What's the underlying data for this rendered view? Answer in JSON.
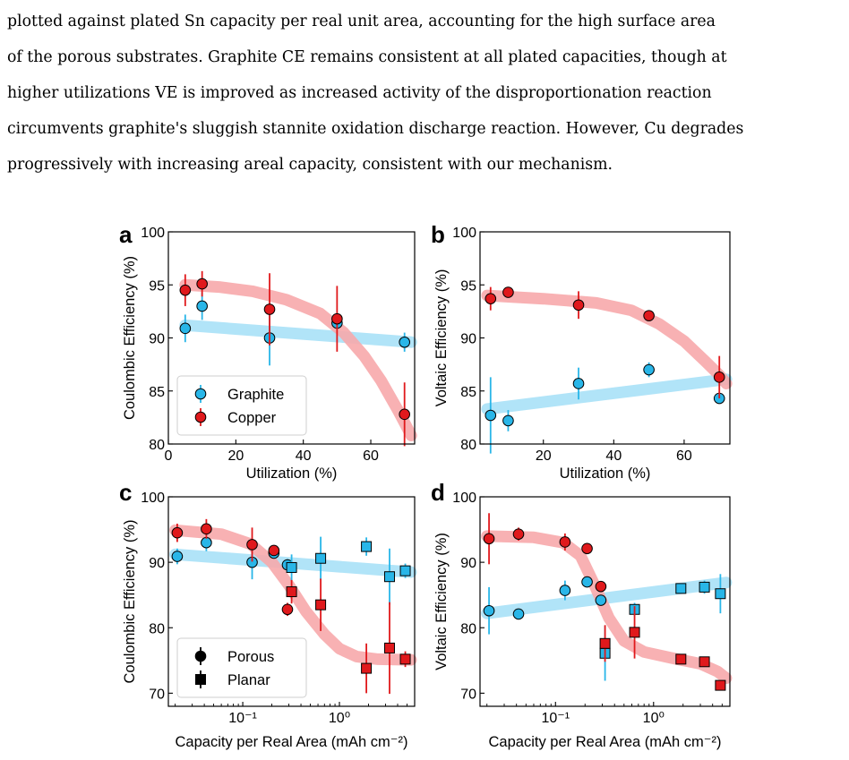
{
  "paragraph": {
    "lines": [
      "plotted against plated Sn capacity per real unit area, accounting for the high surface area",
      "of the porous substrates. Graphite CE remains consistent at all plated capacities, though at",
      "higher utilizations VE is improved as increased activity of the disproportionation reaction",
      "circumvents graphite's sluggish stannite oxidation discharge reaction. However, Cu degrades",
      "progressively with increasing areal capacity, consistent with our mechanism."
    ]
  },
  "colors": {
    "graphite_marker": "#29b6e8",
    "copper_marker": "#e0191c",
    "graphite_trend": "#a8e1f7",
    "copper_trend": "#f7a9ab"
  },
  "chart_data": [
    {
      "panel": "a",
      "type": "scatter",
      "xlabel": "Utilization (%)",
      "ylabel": "Coulombic Efficiency (%)",
      "xlim": [
        0,
        73
      ],
      "ylim": [
        80,
        100
      ],
      "xticks": [
        "0",
        "20",
        "40",
        "60"
      ],
      "yticks": [
        "80",
        "85",
        "90",
        "95",
        "100"
      ],
      "legend": {
        "position": "lower-left",
        "entries": [
          "Graphite",
          "Copper"
        ]
      },
      "series": [
        {
          "name": "Graphite",
          "marker": "circle",
          "color": "#29b6e8",
          "points": [
            {
              "x": 5,
              "y": 90.9,
              "err": 1.3
            },
            {
              "x": 10,
              "y": 93.0,
              "err": 1.3
            },
            {
              "x": 30,
              "y": 90.0,
              "err": 2.6
            },
            {
              "x": 50,
              "y": 91.4,
              "err": 0.6
            },
            {
              "x": 70,
              "y": 89.6,
              "err": 0.9
            }
          ]
        },
        {
          "name": "Copper",
          "marker": "circle",
          "color": "#e0191c",
          "points": [
            {
              "x": 5,
              "y": 94.5,
              "err": 1.5
            },
            {
              "x": 10,
              "y": 95.1,
              "err": 1.2
            },
            {
              "x": 30,
              "y": 92.7,
              "err": 3.4
            },
            {
              "x": 50,
              "y": 91.8,
              "err": 3.1
            },
            {
              "x": 70,
              "y": 82.8,
              "err": 3.0
            }
          ]
        }
      ],
      "trends": {
        "Graphite": [
          [
            5,
            91.2
          ],
          [
            72,
            89.6
          ]
        ],
        "Copper": [
          [
            5,
            95.0
          ],
          [
            15,
            94.8
          ],
          [
            25,
            94.4
          ],
          [
            35,
            93.6
          ],
          [
            45,
            92.3
          ],
          [
            52,
            90.5
          ],
          [
            58,
            88.3
          ],
          [
            63,
            86.0
          ],
          [
            68,
            83.2
          ],
          [
            72,
            80.8
          ]
        ]
      }
    },
    {
      "panel": "b",
      "type": "scatter",
      "xlabel": "Utilization (%)",
      "ylabel": "Voltaic Efficiency (%)",
      "xlim": [
        2,
        73
      ],
      "ylim": [
        80,
        100
      ],
      "xticks": [
        "20",
        "40",
        "60"
      ],
      "yticks": [
        "80",
        "85",
        "90",
        "95",
        "100"
      ],
      "series": [
        {
          "name": "Graphite",
          "marker": "circle",
          "color": "#29b6e8",
          "points": [
            {
              "x": 5,
              "y": 82.7,
              "err": 3.6
            },
            {
              "x": 10,
              "y": 82.2,
              "err": 1.0
            },
            {
              "x": 30,
              "y": 85.7,
              "err": 1.5
            },
            {
              "x": 50,
              "y": 87.0,
              "err": 0.7
            },
            {
              "x": 70,
              "y": 84.3,
              "err": 0.0
            }
          ]
        },
        {
          "name": "Copper",
          "marker": "circle",
          "color": "#e0191c",
          "points": [
            {
              "x": 5,
              "y": 93.7,
              "err": 1.1
            },
            {
              "x": 10,
              "y": 94.3,
              "err": 0.3
            },
            {
              "x": 30,
              "y": 93.1,
              "err": 1.3
            },
            {
              "x": 50,
              "y": 92.1,
              "err": 0.5
            },
            {
              "x": 70,
              "y": 86.3,
              "err": 2.0
            }
          ]
        }
      ],
      "trends": {
        "Graphite": [
          [
            4,
            83.3
          ],
          [
            72,
            86.1
          ]
        ],
        "Copper": [
          [
            4,
            94.0
          ],
          [
            20,
            93.7
          ],
          [
            35,
            93.3
          ],
          [
            45,
            92.6
          ],
          [
            53,
            91.3
          ],
          [
            60,
            89.7
          ],
          [
            66,
            87.8
          ],
          [
            70,
            86.5
          ],
          [
            72,
            85.7
          ]
        ]
      }
    },
    {
      "panel": "c",
      "type": "scatter",
      "xscale": "log",
      "xlabel": "Capacity per Real Area (mAh cm⁻²)",
      "ylabel": "Coulombic Efficiency (%)",
      "xlim": [
        0.017,
        6.0
      ],
      "ylim": [
        68,
        100
      ],
      "xticks": [
        "10⁻¹",
        "10⁰"
      ],
      "yticks": [
        "70",
        "80",
        "90",
        "100"
      ],
      "legend": {
        "position": "lower-left",
        "entries": [
          "Porous",
          "Planar"
        ]
      },
      "series": [
        {
          "name": "Graphite Porous",
          "marker": "circle",
          "color": "#29b6e8",
          "points": [
            {
              "x": 0.021,
              "y": 90.9,
              "err": 1.2
            },
            {
              "x": 0.042,
              "y": 93.0,
              "err": 1.3
            },
            {
              "x": 0.125,
              "y": 90.0,
              "err": 2.6
            },
            {
              "x": 0.21,
              "y": 91.4,
              "err": 0.6
            },
            {
              "x": 0.29,
              "y": 89.6,
              "err": 0.9
            }
          ]
        },
        {
          "name": "Copper Porous",
          "marker": "circle",
          "color": "#e0191c",
          "points": [
            {
              "x": 0.021,
              "y": 94.5,
              "err": 1.4
            },
            {
              "x": 0.042,
              "y": 95.1,
              "err": 1.5
            },
            {
              "x": 0.125,
              "y": 92.7,
              "err": 2.6
            },
            {
              "x": 0.21,
              "y": 91.8,
              "err": 0.6
            },
            {
              "x": 0.29,
              "y": 82.8,
              "err": 1.0
            }
          ]
        },
        {
          "name": "Graphite Planar",
          "marker": "square",
          "color": "#29b6e8",
          "points": [
            {
              "x": 0.32,
              "y": 89.2,
              "err": 2.0
            },
            {
              "x": 0.64,
              "y": 90.6,
              "err": 3.3
            },
            {
              "x": 1.9,
              "y": 92.4,
              "err": 1.4
            },
            {
              "x": 3.3,
              "y": 87.8,
              "err": 4.3
            },
            {
              "x": 4.8,
              "y": 88.7,
              "err": 1.1
            }
          ]
        },
        {
          "name": "Copper Planar",
          "marker": "square",
          "color": "#e0191c",
          "points": [
            {
              "x": 0.32,
              "y": 85.5,
              "err": 1.8
            },
            {
              "x": 0.64,
              "y": 83.5,
              "err": 4.0
            },
            {
              "x": 1.9,
              "y": 73.8,
              "err": 3.8
            },
            {
              "x": 3.3,
              "y": 76.9,
              "err": 7.0
            },
            {
              "x": 4.8,
              "y": 75.2,
              "err": 1.2
            }
          ]
        }
      ],
      "trends": {
        "Graphite": [
          [
            0.02,
            91.2
          ],
          [
            5.5,
            88.5
          ]
        ],
        "Copper": [
          [
            0.02,
            94.9
          ],
          [
            0.06,
            94.3
          ],
          [
            0.12,
            92.8
          ],
          [
            0.2,
            90.0
          ],
          [
            0.3,
            86.5
          ],
          [
            0.45,
            82.5
          ],
          [
            0.7,
            79.0
          ],
          [
            1.0,
            76.8
          ],
          [
            1.5,
            75.6
          ],
          [
            2.5,
            75.2
          ],
          [
            5.5,
            75.1
          ]
        ]
      }
    },
    {
      "panel": "d",
      "type": "scatter",
      "xscale": "log",
      "xlabel": "Capacity per Real Area (mAh cm⁻²)",
      "ylabel": "Voltaic Efficiency (%)",
      "xlim": [
        0.017,
        6.0
      ],
      "ylim": [
        68,
        100
      ],
      "xticks": [
        "10⁻¹",
        "10⁰"
      ],
      "yticks": [
        "70",
        "80",
        "90",
        "100"
      ],
      "series": [
        {
          "name": "Graphite Porous",
          "marker": "circle",
          "color": "#29b6e8",
          "points": [
            {
              "x": 0.021,
              "y": 82.6,
              "err": 3.6
            },
            {
              "x": 0.042,
              "y": 82.1,
              "err": 0.7
            },
            {
              "x": 0.125,
              "y": 85.7,
              "err": 1.5
            },
            {
              "x": 0.21,
              "y": 87.0,
              "err": 0.5
            },
            {
              "x": 0.29,
              "y": 84.2,
              "err": 0.5
            }
          ]
        },
        {
          "name": "Copper Porous",
          "marker": "circle",
          "color": "#e0191c",
          "points": [
            {
              "x": 0.021,
              "y": 93.6,
              "err": 3.9
            },
            {
              "x": 0.042,
              "y": 94.3,
              "err": 1.0
            },
            {
              "x": 0.125,
              "y": 93.1,
              "err": 1.3
            },
            {
              "x": 0.21,
              "y": 92.1,
              "err": 0.5
            },
            {
              "x": 0.29,
              "y": 86.3,
              "err": 0.5
            }
          ]
        },
        {
          "name": "Graphite Planar",
          "marker": "square",
          "color": "#29b6e8",
          "points": [
            {
              "x": 0.32,
              "y": 76.1,
              "err": 4.2
            },
            {
              "x": 0.64,
              "y": 82.8,
              "err": 1.0
            },
            {
              "x": 1.9,
              "y": 86.0,
              "err": 0.5
            },
            {
              "x": 3.3,
              "y": 86.2,
              "err": 1.0
            },
            {
              "x": 4.8,
              "y": 85.2,
              "err": 3.0
            }
          ]
        },
        {
          "name": "Copper Planar",
          "marker": "square",
          "color": "#e0191c",
          "points": [
            {
              "x": 0.32,
              "y": 77.6,
              "err": 2.8
            },
            {
              "x": 0.64,
              "y": 79.3,
              "err": 4.0
            },
            {
              "x": 1.9,
              "y": 75.2,
              "err": 0.5
            },
            {
              "x": 3.3,
              "y": 74.8,
              "err": 0.5
            },
            {
              "x": 4.8,
              "y": 71.2,
              "err": 0.5
            }
          ]
        }
      ],
      "trends": {
        "Graphite": [
          [
            0.02,
            82.2
          ],
          [
            5.5,
            86.9
          ]
        ],
        "Copper": [
          [
            0.02,
            94.0
          ],
          [
            0.06,
            93.8
          ],
          [
            0.12,
            93.0
          ],
          [
            0.18,
            91.0
          ],
          [
            0.25,
            86.5
          ],
          [
            0.35,
            81.5
          ],
          [
            0.5,
            78.0
          ],
          [
            0.8,
            76.3
          ],
          [
            1.5,
            75.4
          ],
          [
            3.0,
            74.5
          ],
          [
            4.5,
            73.3
          ],
          [
            5.5,
            72.3
          ]
        ]
      }
    }
  ]
}
